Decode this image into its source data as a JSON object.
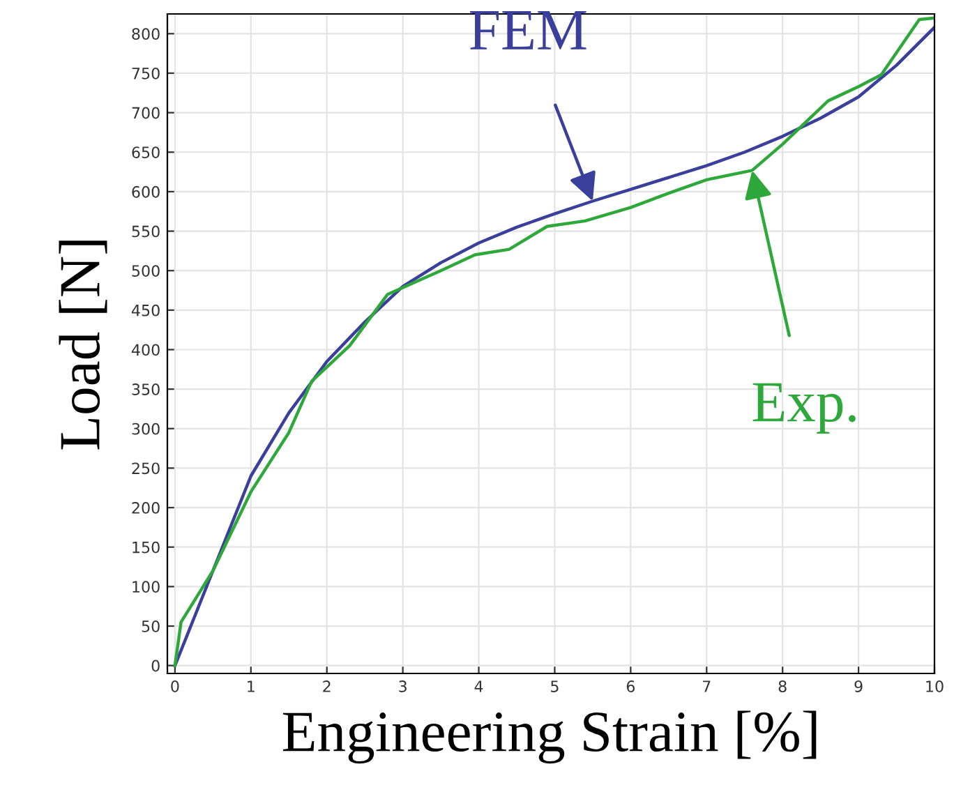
{
  "chart_data": {
    "type": "line",
    "xlabel": "Engineering Strain [%]",
    "ylabel": "Load [N]",
    "xlim": [
      -0.1,
      10
    ],
    "ylim": [
      -10,
      825
    ],
    "xticks": [
      0,
      1,
      2,
      3,
      4,
      5,
      6,
      7,
      8,
      9,
      10
    ],
    "yticks": [
      0,
      50,
      100,
      150,
      200,
      250,
      300,
      350,
      400,
      450,
      500,
      550,
      600,
      650,
      700,
      750,
      800
    ],
    "grid": true,
    "legend": false,
    "series": [
      {
        "name": "FEM",
        "color": "#3b3f9c",
        "x": [
          0,
          0.5,
          1,
          1.5,
          2,
          2.5,
          3,
          3.5,
          4,
          4.5,
          5,
          5.5,
          6,
          6.5,
          7,
          7.5,
          8,
          8.5,
          9,
          9.5,
          10
        ],
        "values": [
          0,
          120,
          240,
          320,
          385,
          435,
          480,
          510,
          535,
          555,
          572,
          588,
          603,
          618,
          633,
          650,
          670,
          693,
          720,
          760,
          808
        ]
      },
      {
        "name": "Exp.",
        "color": "#2ea83a",
        "x": [
          0,
          0.08,
          0.5,
          1,
          1.5,
          1.8,
          2.3,
          2.8,
          3.5,
          3.95,
          4.4,
          4.9,
          5.4,
          6,
          6.5,
          7,
          7.6,
          8,
          8.6,
          9,
          9.3,
          9.8,
          10
        ],
        "values": [
          0,
          55,
          120,
          220,
          295,
          360,
          405,
          470,
          500,
          520,
          527,
          556,
          563,
          580,
          598,
          615,
          627,
          660,
          715,
          733,
          748,
          818,
          820
        ]
      }
    ]
  }
}
